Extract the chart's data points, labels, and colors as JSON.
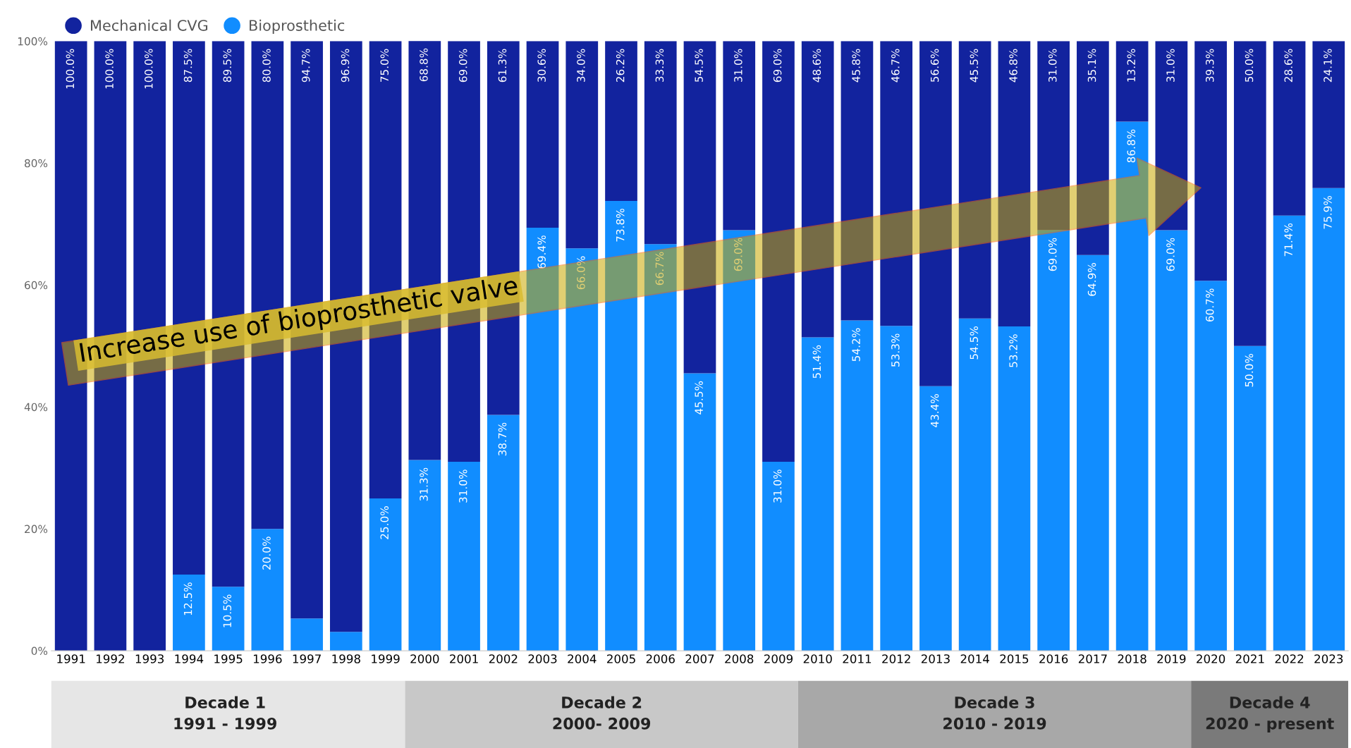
{
  "chart_data": {
    "type": "bar",
    "stacked": true,
    "categories": [
      "1991",
      "1992",
      "1993",
      "1994",
      "1995",
      "1996",
      "1997",
      "1998",
      "1999",
      "2000",
      "2001",
      "2002",
      "2003",
      "2004",
      "2005",
      "2006",
      "2007",
      "2008",
      "2009",
      "2010",
      "2011",
      "2012",
      "2013",
      "2014",
      "2015",
      "2016",
      "2017",
      "2018",
      "2019",
      "2020",
      "2021",
      "2022",
      "2023"
    ],
    "series": [
      {
        "name": "Bioprosthetic",
        "color": "#118dff",
        "values": [
          0,
          0,
          0,
          12.5,
          10.5,
          20.0,
          5.3,
          3.1,
          25.0,
          31.3,
          31.0,
          38.7,
          69.4,
          66.0,
          73.8,
          66.7,
          45.5,
          69.0,
          31.0,
          51.4,
          54.2,
          53.3,
          43.4,
          54.5,
          53.2,
          69.0,
          64.9,
          86.8,
          69.0,
          60.7,
          50.0,
          71.4,
          75.9
        ],
        "value_labels": [
          null,
          null,
          null,
          "12.5%",
          "10.5%",
          "20.0%",
          null,
          null,
          "25.0%",
          "31.3%",
          "31.0%",
          "38.7%",
          "69.4%",
          "66.0%",
          "73.8%",
          "66.7%",
          "45.5%",
          "69.0%",
          "31.0%",
          "51.4%",
          "54.2%",
          "53.3%",
          "43.4%",
          "54.5%",
          "53.2%",
          "69.0%",
          "64.9%",
          "86.8%",
          "69.0%",
          "60.7%",
          "50.0%",
          "71.4%",
          "75.9%"
        ]
      },
      {
        "name": "Mechanical CVG",
        "color": "#12239e",
        "values": [
          100.0,
          100.0,
          100.0,
          87.5,
          89.5,
          80.0,
          94.7,
          96.9,
          75.0,
          68.8,
          69.0,
          61.3,
          30.6,
          34.0,
          26.2,
          33.3,
          54.5,
          31.0,
          69.0,
          48.6,
          45.8,
          46.7,
          56.6,
          45.5,
          46.8,
          31.0,
          35.1,
          13.2,
          31.0,
          39.3,
          50.0,
          28.6,
          24.1
        ],
        "value_labels": [
          "100.0%",
          "100.0%",
          "100.0%",
          "87.5%",
          "89.5%",
          "80.0%",
          "94.7%",
          "96.9%",
          "75.0%",
          "68.8%",
          "69.0%",
          "61.3%",
          "30.6%",
          "34.0%",
          "26.2%",
          "33.3%",
          "54.5%",
          "31.0%",
          "69.0%",
          "48.6%",
          "45.8%",
          "46.7%",
          "56.6%",
          "45.5%",
          "46.8%",
          "31.0%",
          "35.1%",
          "13.2%",
          "31.0%",
          "39.3%",
          "50.0%",
          "28.6%",
          "24.1%"
        ]
      }
    ],
    "ylim": [
      0,
      100
    ],
    "yticks": [
      {
        "value": 0,
        "label": "0%"
      },
      {
        "value": 20,
        "label": "20%"
      },
      {
        "value": 40,
        "label": "40%"
      },
      {
        "value": 60,
        "label": "60%"
      },
      {
        "value": 80,
        "label": "80%"
      },
      {
        "value": 100,
        "label": "100%"
      }
    ],
    "legend": "top left",
    "grid": false,
    "annotations": [
      "Increase use of bioprosthetic valve",
      "Decade 1\n1991 - 1999",
      "Decade 2\n2000- 2009",
      "Decade 3\n2010 - 2019",
      "Decade 4\n2020 - present"
    ]
  }
}
